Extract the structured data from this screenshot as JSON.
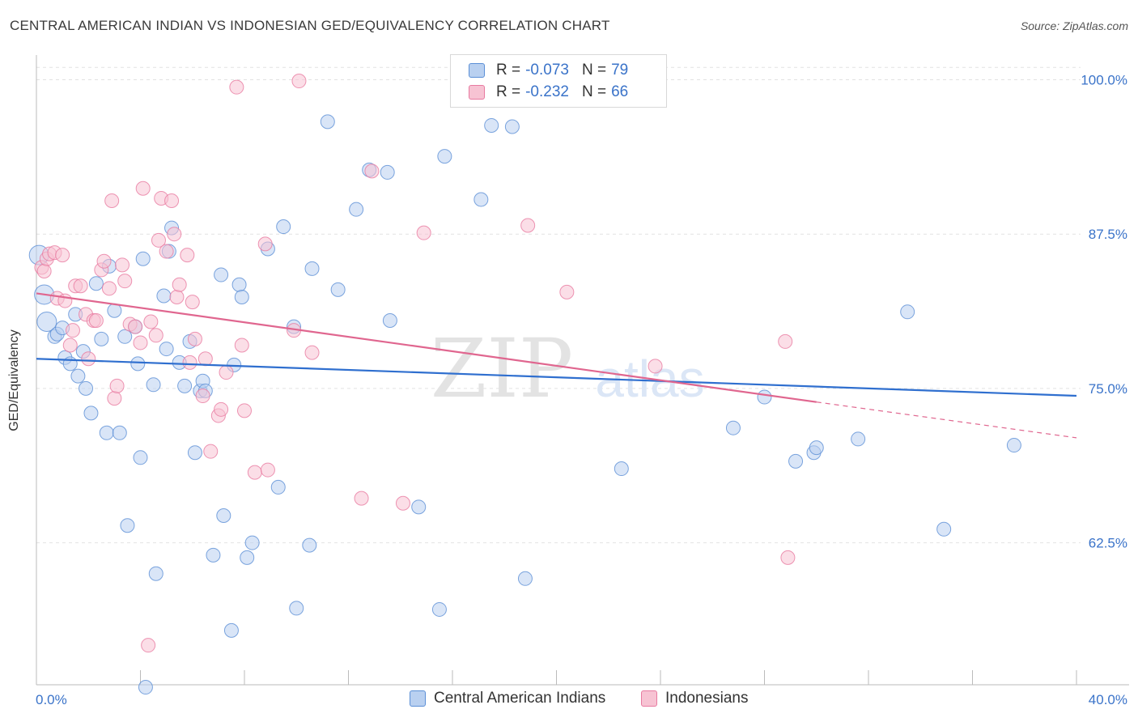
{
  "title": "CENTRAL AMERICAN INDIAN VS INDONESIAN GED/EQUIVALENCY CORRELATION CHART",
  "source": "Source: ZipAtlas.com",
  "watermark": {
    "zip": "ZIP",
    "atlas": "atlas"
  },
  "legend": {
    "rows": [
      {
        "r_label": "R = ",
        "r_value": "-0.073",
        "n_label": "N = ",
        "n_value": "79",
        "color": "#5b8fd6"
      },
      {
        "r_label": "R = ",
        "r_value": "-0.232",
        "n_label": "N = ",
        "n_value": "66",
        "color": "#e87aa0"
      }
    ]
  },
  "bottom_legend": [
    "Central American Indians",
    "Indonesians"
  ],
  "chart_data": {
    "type": "scatter",
    "title": "CENTRAL AMERICAN INDIAN VS INDONESIAN GED/EQUIVALENCY CORRELATION CHART",
    "xlabel": "",
    "ylabel": "GED/Equivalency",
    "xlim": [
      0,
      40
    ],
    "ylim": [
      51,
      102
    ],
    "x_tick_labels": [
      "0.0%",
      "40.0%"
    ],
    "y_ticks": [
      62.5,
      75.0,
      87.5,
      100.0
    ],
    "y_tick_labels": [
      "62.5%",
      "75.0%",
      "87.5%",
      "100.0%"
    ],
    "grid": "horizontal dashed",
    "legend_position": "top-center",
    "series": [
      {
        "name": "Central American Indians",
        "color": "#5b8fd6",
        "fill": "#b9d0f0",
        "trend": {
          "x": [
            0,
            40
          ],
          "y": [
            77.4,
            74.4
          ]
        },
        "points": [
          [
            0.1,
            85.8
          ],
          [
            0.3,
            82.6
          ],
          [
            0.4,
            80.4
          ],
          [
            0.7,
            79.2
          ],
          [
            0.8,
            79.4
          ],
          [
            1.0,
            79.9
          ],
          [
            1.1,
            77.5
          ],
          [
            1.3,
            77.0
          ],
          [
            1.5,
            81.0
          ],
          [
            1.6,
            76.0
          ],
          [
            1.8,
            78.0
          ],
          [
            1.9,
            75.0
          ],
          [
            2.1,
            73.0
          ],
          [
            2.3,
            83.5
          ],
          [
            2.5,
            79.0
          ],
          [
            2.7,
            71.4
          ],
          [
            2.8,
            84.9
          ],
          [
            3.0,
            81.3
          ],
          [
            3.2,
            71.4
          ],
          [
            3.4,
            79.2
          ],
          [
            3.5,
            63.9
          ],
          [
            3.8,
            80.0
          ],
          [
            3.9,
            77.0
          ],
          [
            4.0,
            69.4
          ],
          [
            4.1,
            85.5
          ],
          [
            4.2,
            50.8
          ],
          [
            4.5,
            75.3
          ],
          [
            4.6,
            60.0
          ],
          [
            4.9,
            82.5
          ],
          [
            5.0,
            78.2
          ],
          [
            5.1,
            86.1
          ],
          [
            5.2,
            88.0
          ],
          [
            5.5,
            77.1
          ],
          [
            5.7,
            75.2
          ],
          [
            5.9,
            78.8
          ],
          [
            6.1,
            69.8
          ],
          [
            6.3,
            74.8
          ],
          [
            6.4,
            75.6
          ],
          [
            6.5,
            74.8
          ],
          [
            6.8,
            61.5
          ],
          [
            7.1,
            84.2
          ],
          [
            7.2,
            64.7
          ],
          [
            7.5,
            55.4
          ],
          [
            7.6,
            76.9
          ],
          [
            7.8,
            83.4
          ],
          [
            7.9,
            82.4
          ],
          [
            8.1,
            61.3
          ],
          [
            8.3,
            62.5
          ],
          [
            8.9,
            86.3
          ],
          [
            9.3,
            67.0
          ],
          [
            9.5,
            88.1
          ],
          [
            9.9,
            80.0
          ],
          [
            10.0,
            57.2
          ],
          [
            10.5,
            62.3
          ],
          [
            10.6,
            84.7
          ],
          [
            11.2,
            96.6
          ],
          [
            11.6,
            83.0
          ],
          [
            12.3,
            89.5
          ],
          [
            12.8,
            92.7
          ],
          [
            13.5,
            92.5
          ],
          [
            13.6,
            80.5
          ],
          [
            14.7,
            65.4
          ],
          [
            15.5,
            57.1
          ],
          [
            15.7,
            93.8
          ],
          [
            17.1,
            90.3
          ],
          [
            17.5,
            96.3
          ],
          [
            18.3,
            96.2
          ],
          [
            18.8,
            59.6
          ],
          [
            22.5,
            68.5
          ],
          [
            26.8,
            71.8
          ],
          [
            28.0,
            74.3
          ],
          [
            29.2,
            69.1
          ],
          [
            29.9,
            69.8
          ],
          [
            30.0,
            70.2
          ],
          [
            31.6,
            70.9
          ],
          [
            33.5,
            81.2
          ],
          [
            34.9,
            63.6
          ],
          [
            37.6,
            70.4
          ],
          [
            22.7,
            100.0
          ]
        ]
      },
      {
        "name": "Indonesians",
        "color": "#e87aa0",
        "fill": "#f7c3d3",
        "trend": {
          "x": [
            0,
            30
          ],
          "y": [
            82.7,
            73.9
          ]
        },
        "trend_dashed": {
          "x": [
            30,
            40
          ],
          "y": [
            73.9,
            71.0
          ]
        },
        "points": [
          [
            0.2,
            84.8
          ],
          [
            0.3,
            84.5
          ],
          [
            0.4,
            85.5
          ],
          [
            0.5,
            85.9
          ],
          [
            0.7,
            86.0
          ],
          [
            0.8,
            82.3
          ],
          [
            1.0,
            85.8
          ],
          [
            1.1,
            82.1
          ],
          [
            1.3,
            78.5
          ],
          [
            1.4,
            79.7
          ],
          [
            1.5,
            83.3
          ],
          [
            1.7,
            83.3
          ],
          [
            1.9,
            81.0
          ],
          [
            2.0,
            77.4
          ],
          [
            2.2,
            80.5
          ],
          [
            2.3,
            80.5
          ],
          [
            2.5,
            84.6
          ],
          [
            2.6,
            85.3
          ],
          [
            2.8,
            83.1
          ],
          [
            2.9,
            90.2
          ],
          [
            3.0,
            74.2
          ],
          [
            3.1,
            75.2
          ],
          [
            3.3,
            85.0
          ],
          [
            3.4,
            83.7
          ],
          [
            3.6,
            80.2
          ],
          [
            3.8,
            80.0
          ],
          [
            4.0,
            78.7
          ],
          [
            4.1,
            91.2
          ],
          [
            4.3,
            54.2
          ],
          [
            4.4,
            80.4
          ],
          [
            4.6,
            79.3
          ],
          [
            4.7,
            87.0
          ],
          [
            4.8,
            90.4
          ],
          [
            5.0,
            86.1
          ],
          [
            5.2,
            90.2
          ],
          [
            5.3,
            87.5
          ],
          [
            5.4,
            82.4
          ],
          [
            5.5,
            83.4
          ],
          [
            5.8,
            85.8
          ],
          [
            5.9,
            77.1
          ],
          [
            6.0,
            82.0
          ],
          [
            6.1,
            79.0
          ],
          [
            6.4,
            74.4
          ],
          [
            6.5,
            77.4
          ],
          [
            6.7,
            69.9
          ],
          [
            7.0,
            72.8
          ],
          [
            7.1,
            73.3
          ],
          [
            7.3,
            76.3
          ],
          [
            7.7,
            99.4
          ],
          [
            7.9,
            78.5
          ],
          [
            8.0,
            73.2
          ],
          [
            8.4,
            68.2
          ],
          [
            8.8,
            86.7
          ],
          [
            8.9,
            68.4
          ],
          [
            9.9,
            79.7
          ],
          [
            10.1,
            99.9
          ],
          [
            10.6,
            77.9
          ],
          [
            12.5,
            66.1
          ],
          [
            12.9,
            92.6
          ],
          [
            14.1,
            65.7
          ],
          [
            14.9,
            87.6
          ],
          [
            18.9,
            88.2
          ],
          [
            20.4,
            82.8
          ],
          [
            23.8,
            76.8
          ],
          [
            28.8,
            78.8
          ],
          [
            28.9,
            61.3
          ]
        ]
      }
    ]
  }
}
